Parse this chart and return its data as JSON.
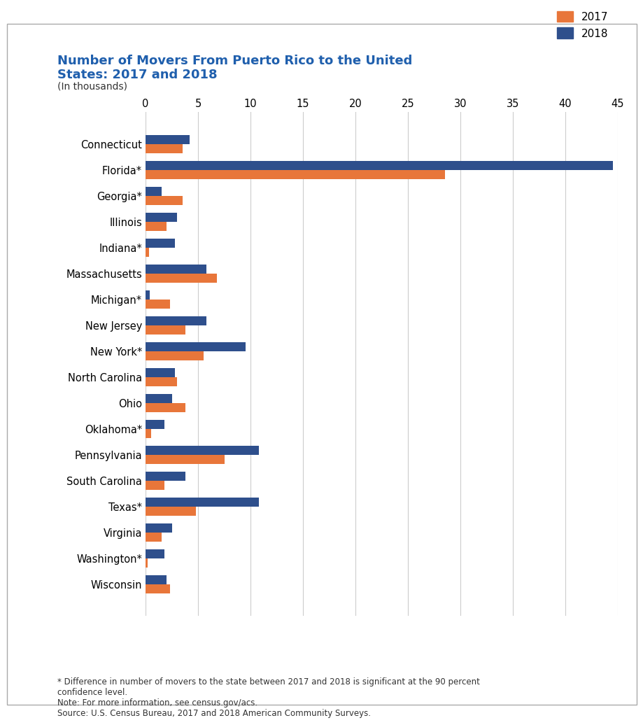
{
  "title_line1": "Number of Movers From Puerto Rico to the United",
  "title_line2": "States: 2017 and 2018",
  "subtitle": "(In thousands)",
  "categories": [
    "Connecticut",
    "Florida*",
    "Georgia*",
    "Illinois",
    "Indiana*",
    "Massachusetts",
    "Michigan*",
    "New Jersey",
    "New York*",
    "North Carolina",
    "Ohio",
    "Oklahoma*",
    "Pennsylvania",
    "South Carolina",
    "Texas*",
    "Virginia",
    "Washington*",
    "Wisconsin"
  ],
  "values_2017": [
    3.5,
    28.5,
    3.5,
    2.0,
    0.3,
    6.8,
    2.3,
    3.8,
    5.5,
    3.0,
    3.8,
    0.5,
    7.5,
    1.8,
    4.8,
    1.5,
    0.2,
    2.3
  ],
  "values_2018": [
    4.2,
    44.5,
    1.5,
    3.0,
    2.8,
    5.8,
    0.4,
    5.8,
    9.5,
    2.8,
    2.5,
    1.8,
    10.8,
    3.8,
    10.8,
    2.5,
    1.8,
    2.0
  ],
  "color_2017": "#E8763A",
  "color_2018": "#2E4F8C",
  "xlim": [
    0,
    45
  ],
  "xticks": [
    0,
    5,
    10,
    15,
    20,
    25,
    30,
    35,
    40,
    45
  ],
  "footnote": "* Difference in number of movers to the state between 2017 and 2018 is significant at the 90 percent\nconfidence level.\nNote: For more information, see census.gov/acs.\nSource: U.S. Census Bureau, 2017 and 2018 American Community Surveys.",
  "background_color": "#FFFFFF",
  "border_color": "#CCCCCC",
  "title_color": "#1F5FAD",
  "bar_height": 0.35,
  "grid_color": "#CCCCCC"
}
